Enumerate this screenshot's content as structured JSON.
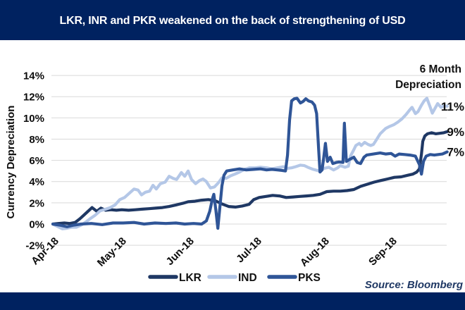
{
  "title": "LKR, INR and PKR weakened on the back of strengthening of USD",
  "annotation": {
    "line1": "6 Month",
    "line2": "Depreciation"
  },
  "source_label": "Source: Bloomberg",
  "colors": {
    "bar_navy": "#002260",
    "lkr": "#1F3864",
    "ind": "#B4C7E7",
    "pks": "#2F5597",
    "gridline": "#D9D9D9",
    "source_text": "#1F3864"
  },
  "chart_data": {
    "type": "line",
    "title": "LKR, INR and PKR weakened on the back of strengthening of USD",
    "xlabel": "",
    "ylabel": "Currency Depreciation",
    "x_unit": "months since Apr-2018",
    "y_unit": "percent depreciation",
    "x_ticks": [
      "Apr-18",
      "May-18",
      "Jun-18",
      "Jul-18",
      "Aug-18",
      "Sep-18"
    ],
    "y_ticks": [
      "14%",
      "12%",
      "10%",
      "8%",
      "6%",
      "4%",
      "2%",
      "0%",
      "-2%"
    ],
    "y_tick_values": [
      14,
      12,
      10,
      8,
      6,
      4,
      2,
      0,
      -2
    ],
    "ylim": [
      -2,
      14
    ],
    "xlim": [
      0,
      5.83
    ],
    "grid": "horizontal",
    "legend_position": "bottom",
    "annotation": "6 Month Depreciation",
    "series": [
      {
        "name": "LKR",
        "color": "#1F3864",
        "end_label": "9%",
        "points": [
          [
            0,
            0
          ],
          [
            0.08,
            0.05
          ],
          [
            0.17,
            0.1
          ],
          [
            0.25,
            0.05
          ],
          [
            0.33,
            0.15
          ],
          [
            0.4,
            0.5
          ],
          [
            0.46,
            0.85
          ],
          [
            0.52,
            1.2
          ],
          [
            0.58,
            1.55
          ],
          [
            0.65,
            1.2
          ],
          [
            0.71,
            1.5
          ],
          [
            0.78,
            1.3
          ],
          [
            0.86,
            1.35
          ],
          [
            0.94,
            1.3
          ],
          [
            1.02,
            1.35
          ],
          [
            1.12,
            1.3
          ],
          [
            1.22,
            1.35
          ],
          [
            1.32,
            1.4
          ],
          [
            1.42,
            1.45
          ],
          [
            1.52,
            1.5
          ],
          [
            1.62,
            1.55
          ],
          [
            1.72,
            1.65
          ],
          [
            1.82,
            1.8
          ],
          [
            1.92,
            1.95
          ],
          [
            2.0,
            2.1
          ],
          [
            2.1,
            2.15
          ],
          [
            2.2,
            2.25
          ],
          [
            2.3,
            2.3
          ],
          [
            2.4,
            2.2
          ],
          [
            2.5,
            1.9
          ],
          [
            2.6,
            1.65
          ],
          [
            2.7,
            1.6
          ],
          [
            2.8,
            1.7
          ],
          [
            2.9,
            1.85
          ],
          [
            2.97,
            2.3
          ],
          [
            3.05,
            2.5
          ],
          [
            3.15,
            2.6
          ],
          [
            3.25,
            2.7
          ],
          [
            3.35,
            2.65
          ],
          [
            3.45,
            2.5
          ],
          [
            3.55,
            2.55
          ],
          [
            3.65,
            2.6
          ],
          [
            3.75,
            2.65
          ],
          [
            3.85,
            2.7
          ],
          [
            3.95,
            2.8
          ],
          [
            4.05,
            3.05
          ],
          [
            4.15,
            3.1
          ],
          [
            4.25,
            3.1
          ],
          [
            4.35,
            3.15
          ],
          [
            4.45,
            3.25
          ],
          [
            4.55,
            3.55
          ],
          [
            4.65,
            3.75
          ],
          [
            4.75,
            3.95
          ],
          [
            4.85,
            4.1
          ],
          [
            4.95,
            4.25
          ],
          [
            5.05,
            4.4
          ],
          [
            5.15,
            4.45
          ],
          [
            5.25,
            4.6
          ],
          [
            5.32,
            4.7
          ],
          [
            5.38,
            4.9
          ],
          [
            5.42,
            5.2
          ],
          [
            5.45,
            6.6
          ],
          [
            5.47,
            7.8
          ],
          [
            5.5,
            8.3
          ],
          [
            5.54,
            8.5
          ],
          [
            5.6,
            8.6
          ],
          [
            5.66,
            8.5
          ],
          [
            5.72,
            8.55
          ],
          [
            5.78,
            8.6
          ],
          [
            5.83,
            8.7
          ]
        ]
      },
      {
        "name": "IND",
        "color": "#B4C7E7",
        "end_label": "11%",
        "points": [
          [
            0,
            0
          ],
          [
            0.06,
            -0.2
          ],
          [
            0.14,
            -0.45
          ],
          [
            0.21,
            -0.4
          ],
          [
            0.28,
            -0.3
          ],
          [
            0.35,
            -0.3
          ],
          [
            0.42,
            -0.1
          ],
          [
            0.49,
            0.2
          ],
          [
            0.55,
            0.5
          ],
          [
            0.62,
            0.8
          ],
          [
            0.7,
            1.25
          ],
          [
            0.78,
            1.4
          ],
          [
            0.85,
            1.55
          ],
          [
            0.92,
            1.8
          ],
          [
            0.99,
            2.3
          ],
          [
            1.06,
            2.5
          ],
          [
            1.13,
            2.9
          ],
          [
            1.2,
            3.3
          ],
          [
            1.26,
            3.2
          ],
          [
            1.31,
            2.75
          ],
          [
            1.37,
            3.0
          ],
          [
            1.43,
            3.1
          ],
          [
            1.48,
            3.65
          ],
          [
            1.53,
            3.3
          ],
          [
            1.59,
            3.8
          ],
          [
            1.66,
            3.95
          ],
          [
            1.72,
            4.5
          ],
          [
            1.78,
            4.3
          ],
          [
            1.83,
            4.2
          ],
          [
            1.9,
            4.85
          ],
          [
            1.95,
            4.5
          ],
          [
            2.0,
            5.0
          ],
          [
            2.05,
            4.2
          ],
          [
            2.11,
            3.8
          ],
          [
            2.17,
            4.1
          ],
          [
            2.22,
            4.25
          ],
          [
            2.27,
            4.0
          ],
          [
            2.33,
            3.4
          ],
          [
            2.39,
            3.5
          ],
          [
            2.45,
            3.9
          ],
          [
            2.5,
            4.35
          ],
          [
            2.56,
            4.3
          ],
          [
            2.63,
            4.55
          ],
          [
            2.69,
            4.7
          ],
          [
            2.76,
            4.9
          ],
          [
            2.83,
            5.15
          ],
          [
            2.91,
            5.3
          ],
          [
            2.99,
            5.3
          ],
          [
            3.07,
            5.35
          ],
          [
            3.16,
            5.3
          ],
          [
            3.24,
            5.2
          ],
          [
            3.32,
            5.3
          ],
          [
            3.41,
            5.4
          ],
          [
            3.47,
            5.25
          ],
          [
            3.53,
            5.3
          ],
          [
            3.59,
            5.4
          ],
          [
            3.66,
            5.55
          ],
          [
            3.72,
            5.5
          ],
          [
            3.77,
            5.35
          ],
          [
            3.85,
            5.15
          ],
          [
            3.94,
            5.0
          ],
          [
            4.01,
            5.25
          ],
          [
            4.08,
            5.35
          ],
          [
            4.15,
            5.1
          ],
          [
            4.21,
            5.3
          ],
          [
            4.25,
            5.5
          ],
          [
            4.32,
            5.35
          ],
          [
            4.37,
            5.45
          ],
          [
            4.4,
            6.4
          ],
          [
            4.45,
            7.0
          ],
          [
            4.48,
            7.4
          ],
          [
            4.53,
            7.6
          ],
          [
            4.56,
            7.4
          ],
          [
            4.61,
            7.7
          ],
          [
            4.66,
            7.5
          ],
          [
            4.7,
            7.4
          ],
          [
            4.74,
            7.5
          ],
          [
            4.78,
            7.9
          ],
          [
            4.84,
            8.5
          ],
          [
            4.92,
            9.0
          ],
          [
            4.98,
            9.2
          ],
          [
            5.04,
            9.35
          ],
          [
            5.1,
            9.6
          ],
          [
            5.16,
            9.9
          ],
          [
            5.22,
            10.3
          ],
          [
            5.27,
            10.7
          ],
          [
            5.31,
            11.0
          ],
          [
            5.36,
            10.4
          ],
          [
            5.4,
            10.6
          ],
          [
            5.45,
            11.2
          ],
          [
            5.49,
            11.6
          ],
          [
            5.53,
            11.85
          ],
          [
            5.58,
            11.0
          ],
          [
            5.61,
            10.45
          ],
          [
            5.65,
            10.9
          ],
          [
            5.69,
            11.35
          ],
          [
            5.74,
            11.0
          ],
          [
            5.79,
            11.15
          ],
          [
            5.83,
            11.1
          ]
        ]
      },
      {
        "name": "PKS",
        "color": "#2F5597",
        "end_label": "7%",
        "points": [
          [
            0,
            0
          ],
          [
            0.1,
            -0.1
          ],
          [
            0.21,
            -0.25
          ],
          [
            0.31,
            -0.1
          ],
          [
            0.42,
            0
          ],
          [
            0.57,
            0.05
          ],
          [
            0.73,
            -0.05
          ],
          [
            0.89,
            0.1
          ],
          [
            1.04,
            0.1
          ],
          [
            1.2,
            0.15
          ],
          [
            1.35,
            0
          ],
          [
            1.51,
            0.1
          ],
          [
            1.67,
            0.05
          ],
          [
            1.82,
            0.1
          ],
          [
            1.95,
            0
          ],
          [
            2.08,
            0.05
          ],
          [
            2.2,
            0
          ],
          [
            2.27,
            0.3
          ],
          [
            2.32,
            1.2
          ],
          [
            2.36,
            2.4
          ],
          [
            2.38,
            2.8
          ],
          [
            2.41,
            1.3
          ],
          [
            2.44,
            -0.4
          ],
          [
            2.47,
            1.6
          ],
          [
            2.5,
            3.6
          ],
          [
            2.53,
            4.6
          ],
          [
            2.57,
            5.0
          ],
          [
            2.66,
            5.1
          ],
          [
            2.76,
            5.2
          ],
          [
            2.86,
            5.1
          ],
          [
            2.97,
            5.15
          ],
          [
            3.07,
            5.2
          ],
          [
            3.16,
            5.1
          ],
          [
            3.24,
            5.15
          ],
          [
            3.32,
            5.1
          ],
          [
            3.39,
            5.05
          ],
          [
            3.44,
            5.0
          ],
          [
            3.47,
            6.5
          ],
          [
            3.5,
            9.8
          ],
          [
            3.53,
            11.6
          ],
          [
            3.57,
            11.8
          ],
          [
            3.61,
            11.85
          ],
          [
            3.66,
            11.4
          ],
          [
            3.7,
            11.55
          ],
          [
            3.74,
            11.8
          ],
          [
            3.78,
            11.6
          ],
          [
            3.83,
            11.5
          ],
          [
            3.87,
            11.2
          ],
          [
            3.9,
            10.4
          ],
          [
            3.93,
            7.0
          ],
          [
            3.95,
            4.9
          ],
          [
            3.98,
            5.1
          ],
          [
            4.0,
            6.0
          ],
          [
            4.03,
            7.6
          ],
          [
            4.06,
            5.9
          ],
          [
            4.1,
            6.3
          ],
          [
            4.14,
            5.7
          ],
          [
            4.19,
            5.8
          ],
          [
            4.23,
            5.85
          ],
          [
            4.29,
            5.8
          ],
          [
            4.31,
            9.5
          ],
          [
            4.34,
            5.9
          ],
          [
            4.39,
            6.1
          ],
          [
            4.45,
            6.3
          ],
          [
            4.5,
            5.8
          ],
          [
            4.55,
            5.7
          ],
          [
            4.6,
            6.3
          ],
          [
            4.64,
            6.5
          ],
          [
            4.74,
            6.6
          ],
          [
            4.84,
            6.7
          ],
          [
            4.92,
            6.6
          ],
          [
            5.0,
            6.65
          ],
          [
            5.06,
            6.4
          ],
          [
            5.12,
            6.6
          ],
          [
            5.2,
            6.55
          ],
          [
            5.28,
            6.5
          ],
          [
            5.36,
            6.4
          ],
          [
            5.42,
            5.6
          ],
          [
            5.45,
            4.7
          ],
          [
            5.48,
            5.9
          ],
          [
            5.52,
            6.4
          ],
          [
            5.58,
            6.55
          ],
          [
            5.64,
            6.5
          ],
          [
            5.7,
            6.55
          ],
          [
            5.76,
            6.6
          ],
          [
            5.83,
            6.8
          ]
        ]
      }
    ]
  }
}
